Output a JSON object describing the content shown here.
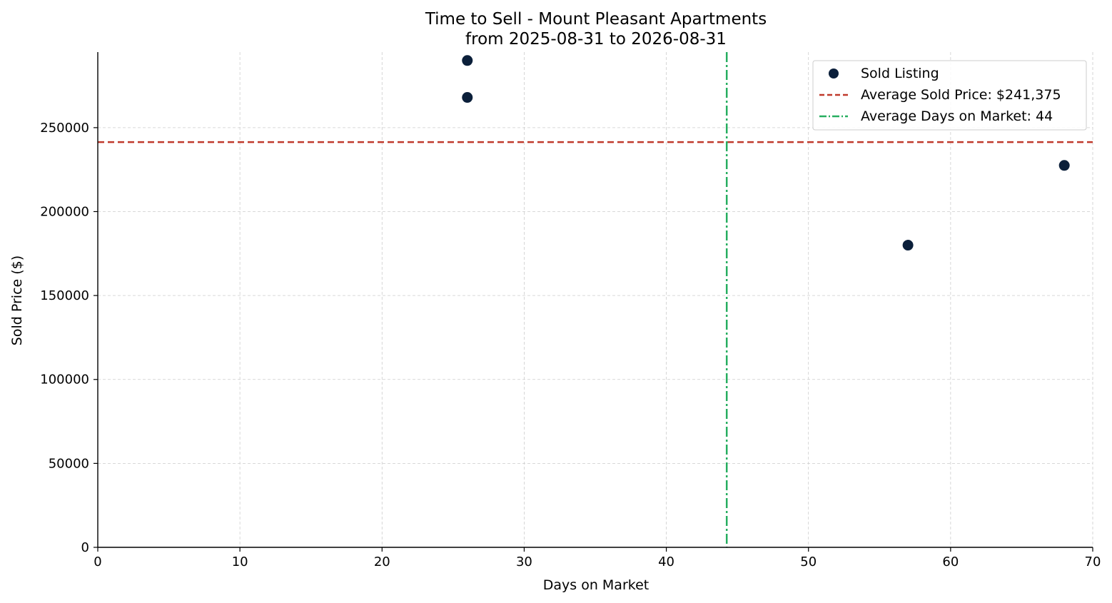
{
  "chart_data": {
    "type": "scatter",
    "title": "Time to Sell - Mount Pleasant Apartments",
    "subtitle": "from 2025-08-31 to 2026-08-31",
    "xlabel": "Days on Market",
    "ylabel": "Sold Price ($)",
    "xlim": [
      0,
      70
    ],
    "ylim": [
      0,
      295000
    ],
    "xticks": [
      0,
      10,
      20,
      30,
      40,
      50,
      60,
      70
    ],
    "yticks": [
      0,
      50000,
      100000,
      150000,
      200000,
      250000
    ],
    "grid": true,
    "legend_position": "top-right",
    "series": [
      {
        "name": "Sold Listing",
        "color": "#0b1f3a",
        "points": [
          {
            "x": 26,
            "y": 290000
          },
          {
            "x": 26,
            "y": 268000
          },
          {
            "x": 57,
            "y": 180000
          },
          {
            "x": 68,
            "y": 227500
          }
        ]
      }
    ],
    "reference_lines": [
      {
        "name": "Average Sold Price: $241,375",
        "orientation": "horizontal",
        "value": 241375,
        "color": "#c0392b",
        "style": "dashed"
      },
      {
        "name": "Average Days on Market: 44",
        "orientation": "vertical",
        "value": 44.25,
        "color": "#27ae60",
        "style": "dash-dot"
      }
    ]
  }
}
